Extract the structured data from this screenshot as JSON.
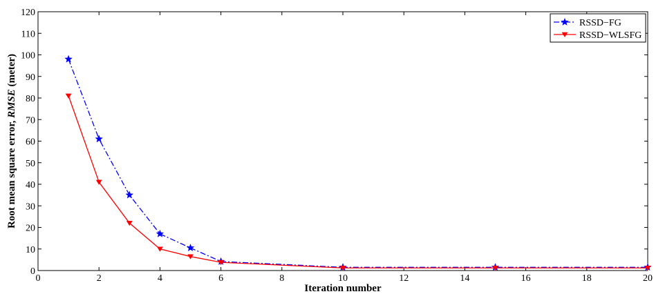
{
  "chart_data": {
    "type": "line",
    "xlabel": "Iteration number",
    "ylabel_prefix": "Root mean square error, ",
    "ylabel_italic": "RMSE",
    "ylabel_suffix": " (meter)",
    "xlim": [
      0,
      20
    ],
    "ylim": [
      0,
      120
    ],
    "xticks": [
      0,
      2,
      4,
      6,
      8,
      10,
      12,
      14,
      16,
      18,
      20
    ],
    "yticks": [
      0,
      10,
      20,
      30,
      40,
      50,
      60,
      70,
      80,
      90,
      100,
      110,
      120
    ],
    "grid": false,
    "legend_position": "top-right",
    "series": [
      {
        "name": "RSSD−FG",
        "color": "#0000ff",
        "line_style": "dash-dot",
        "marker": "star",
        "x": [
          1,
          2,
          3,
          4,
          5,
          6,
          10,
          15,
          20
        ],
        "y": [
          98,
          61,
          35,
          17,
          10.5,
          4.2,
          1.5,
          1.5,
          1.5
        ]
      },
      {
        "name": "RSSD−WLSFG",
        "color": "#ff0000",
        "line_style": "solid",
        "marker": "triangle-down",
        "x": [
          1,
          2,
          3,
          4,
          5,
          6,
          10,
          15,
          20
        ],
        "y": [
          81,
          41,
          22,
          10,
          6.5,
          3.8,
          1.2,
          1.2,
          1.2
        ]
      }
    ]
  }
}
